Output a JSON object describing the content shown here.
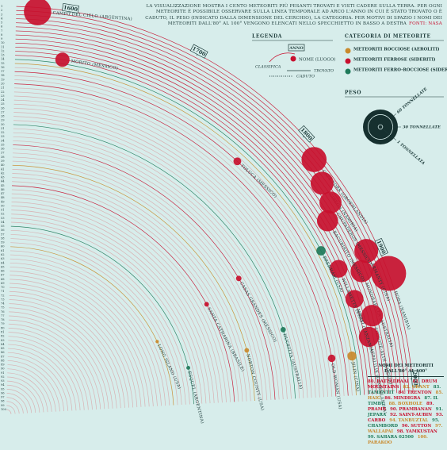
{
  "chart_data": {
    "type": "radial-timeline",
    "intro": "La visualizzazione mostra i cento meteoriti più pesanti trovati e visti cadere sulla terra. Per ogni meteorite è possibile osservare sulla linea temporale ad arco l'anno in cui è stato trovato o è caduto, il peso (indicato dalla dimensione del cerchio), la categoria. Per motivi di spazio i nomi dei meteoriti dall'80° al 100° vengono elencati nello specchietto in basso a destra",
    "source": "Fonti: NASA",
    "legend": {
      "title": "Legenda",
      "year": "Anno",
      "rank": "Classifica",
      "name": "Nome (Luogo)",
      "found": "Trovato",
      "fell": "Caduto"
    },
    "category_title": "Categoria di meteorite",
    "size_title": "Peso",
    "size_legend": [
      {
        "value": 60,
        "label": "60 tonnellate"
      },
      {
        "value": 30,
        "label": "30 tonnellate"
      },
      {
        "value": 1,
        "label": "1 tonnellata"
      }
    ],
    "xlim": [
      1560,
      2010
    ],
    "xticks": [
      1600,
      1700,
      1800,
      1900,
      2000
    ],
    "ylim": [
      1,
      100
    ],
    "yticks": [
      1,
      2,
      3,
      4,
      5,
      6,
      7,
      8,
      9,
      10,
      11,
      12,
      13,
      14,
      15,
      16,
      17,
      18,
      19,
      20,
      21,
      22,
      23,
      24,
      25,
      26,
      27,
      28,
      29,
      30,
      31,
      32,
      33,
      34,
      35,
      36,
      37,
      38,
      39,
      40,
      41,
      42,
      43,
      44,
      45,
      46,
      47,
      48,
      49,
      50,
      51,
      52,
      53,
      54,
      55,
      56,
      57,
      58,
      59,
      60,
      61,
      62,
      63,
      64,
      65,
      66,
      67,
      68,
      69,
      70,
      71,
      72,
      73,
      74,
      75,
      76,
      77,
      78,
      79,
      80,
      81,
      82,
      83,
      84,
      85,
      86,
      87,
      88,
      89,
      90,
      91,
      92,
      93,
      94,
      95,
      96,
      97,
      98,
      99,
      100
    ],
    "series": [
      {
        "name": "Meteoriti rocciose (Aeroliti)",
        "color": "#c9892c",
        "labels": [
          "Jilin (Cina)",
          "Norton County (USA)",
          "Long Island (USA)"
        ],
        "x": [
          1976,
          1948,
          1891
        ],
        "values": [
          15,
          40,
          60
        ],
        "sizes": [
          4,
          1.07,
          0.56
        ]
      },
      {
        "name": "Meteoriti ferrose (Sideriti)",
        "color": "#c8102e",
        "labels": [
          "Hoba (Namibia)",
          "Campo del Cielo (Argentina)",
          "Cape York (Groenlandia)",
          "Armanty (Cina)",
          "Gibeon (Namibia)",
          "Chupaderos (Messico)",
          "Mundrabilla (Australia)",
          "Sikhote-Alin (Russia)",
          "Bacubirito (Messico)",
          "Agpalilik (Groenlandia)",
          "Mbosi (Tanzania)",
          "Willamette (USA)",
          "Morito (Messico)",
          "Toluca (Messico)",
          "Old Woman (USA)",
          "Casas Grandes (Messico)",
          "Santa Catharina (Brasile)"
        ],
        "x": [
          1920,
          1576,
          1818,
          1898,
          1836,
          1852,
          1911,
          1947,
          1863,
          1963,
          1930,
          1902,
          1600,
          1776,
          1975,
          1867,
          1875
        ],
        "values": [
          1,
          2,
          3,
          4,
          5,
          6,
          7,
          8,
          9,
          10,
          11,
          12,
          13,
          17,
          20,
          35,
          45
        ],
        "sizes": [
          60,
          37,
          31,
          28,
          26,
          24,
          24,
          23,
          22,
          20,
          16,
          15.5,
          10,
          3,
          2.75,
          1.5,
          1.1
        ]
      },
      {
        "name": "Meteoriti ferro-rocciose (Sideroliti)",
        "color": "#1f7a5a",
        "labels": [
          "Brenham (USA)",
          "Huckitta (Australia)",
          "Esquel (Argentina)"
        ],
        "x": [
          1882,
          1937,
          1951
        ],
        "values": [
          14,
          30,
          55
        ],
        "sizes": [
          4.3,
          1.4,
          0.75
        ]
      }
    ],
    "name_box": {
      "title": "Nomi dei meteoriti dall'80° al 100°",
      "items": [
        "80. Bateldraai",
        "81. Drum Mountains",
        "82. Grant",
        "83. Tamentit",
        "84. Trenton",
        "85. Haig",
        "86. Mindigra",
        "87. Il Timbu",
        "88. Boxhole",
        "89. Pramb",
        "90. Prambanan",
        "91. Jepara",
        "92. Saint-Aubin",
        "93. Carbo",
        "94. Tanbuztal",
        "95. Chambord",
        "96. Sutton",
        "97. Wallapai",
        "98. Yamkustan",
        "99. Sahara 02500",
        "100. Parakoo"
      ]
    }
  }
}
